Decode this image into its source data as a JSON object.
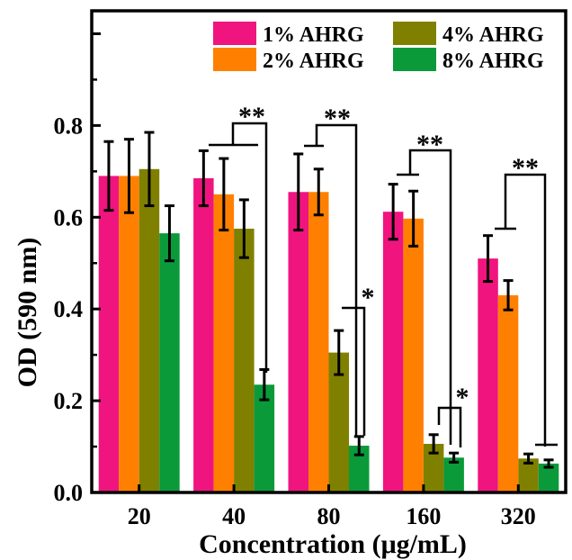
{
  "chart_data": {
    "type": "bar",
    "xlabel": "Concentration (μg/mL)",
    "ylabel": "OD (590 nm)",
    "categories": [
      "20",
      "40",
      "80",
      "160",
      "320"
    ],
    "ylim": [
      0,
      1.05
    ],
    "yticks": [
      "0.0",
      "0.2",
      "0.4",
      "0.6",
      "0.8"
    ],
    "yticks_values": [
      0,
      0.2,
      0.4,
      0.6,
      0.8
    ],
    "legend_position": "top-right",
    "series": [
      {
        "name": "1% AHRG",
        "color": "#f0147f",
        "values": [
          0.69,
          0.685,
          0.655,
          0.612,
          0.51
        ],
        "errors": [
          0.075,
          0.06,
          0.083,
          0.06,
          0.05
        ]
      },
      {
        "name": "2% AHRG",
        "color": "#ff8000",
        "values": [
          0.69,
          0.65,
          0.655,
          0.597,
          0.43
        ],
        "errors": [
          0.08,
          0.078,
          0.05,
          0.06,
          0.032
        ]
      },
      {
        "name": "4% AHRG",
        "color": "#808000",
        "values": [
          0.705,
          0.575,
          0.305,
          0.106,
          0.074
        ],
        "errors": [
          0.08,
          0.063,
          0.048,
          0.02,
          0.01
        ]
      },
      {
        "name": "8% AHRG",
        "color": "#0a9a3a",
        "values": [
          0.565,
          0.235,
          0.102,
          0.076,
          0.063
        ],
        "errors": [
          0.06,
          0.033,
          0.02,
          0.01,
          0.008
        ]
      }
    ],
    "significance": [
      {
        "group": 1,
        "label": "**"
      },
      {
        "group": 2,
        "label": "**"
      },
      {
        "group": 2,
        "label": "*"
      },
      {
        "group": 3,
        "label": "**"
      },
      {
        "group": 3,
        "label": "*"
      },
      {
        "group": 4,
        "label": "**"
      }
    ]
  }
}
